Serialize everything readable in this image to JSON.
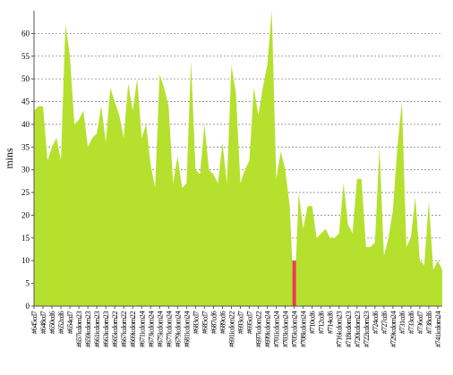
{
  "chart_data": {
    "type": "area",
    "ylabel": "mins",
    "categories": [
      "#645cd7",
      null,
      "#648cd7",
      null,
      "#650cd6",
      null,
      "#652cd6",
      null,
      "#654cd7",
      null,
      "#657icdom23",
      null,
      "#659icdom23",
      null,
      "#661icdom23",
      null,
      "#663icdom23",
      null,
      "#665icdom22",
      null,
      "#667icdom22",
      null,
      "#669icdom22",
      null,
      "#671icdom24",
      null,
      "#673icdom24",
      null,
      "#675icdom24",
      null,
      "#677icdom24",
      null,
      "#679icdom24",
      null,
      "#681icdom24",
      null,
      "#683cd7",
      null,
      "#685cd7",
      null,
      "#687cd6",
      null,
      "#689cd6",
      null,
      "#691icdom22",
      null,
      "#693cd7",
      null,
      "#695cd7",
      null,
      "#697icdom22",
      null,
      "#699icdom24",
      null,
      "#701icdom24",
      null,
      "#703icdom24",
      null,
      "#705icdom24",
      null,
      "#708icdom24",
      null,
      "#710cd6",
      null,
      "#712cd6",
      null,
      "#714cd6",
      null,
      "#716icdom23",
      null,
      "#718icdom23",
      null,
      "#720icdom23",
      null,
      "#722icdom23",
      null,
      "#724cd6",
      null,
      "#727cd6",
      null,
      "#729icdom24",
      null,
      "#731cd6",
      null,
      "#733cd6",
      null,
      "#736cd7",
      null,
      "#738cd6",
      null,
      "#741icdom24",
      null
    ],
    "series": [
      {
        "color": "#b5e02e",
        "values": [
          43,
          44,
          44,
          32,
          35,
          37,
          32,
          62,
          55,
          40,
          41,
          43,
          35,
          37,
          38,
          44,
          36,
          48,
          45,
          42,
          37,
          49,
          43,
          50,
          37,
          40,
          31,
          26,
          51,
          48,
          44,
          27,
          33,
          26,
          27,
          54,
          30,
          29,
          40,
          30,
          29,
          27,
          36,
          27,
          53,
          47,
          27,
          30,
          32,
          48,
          42,
          48,
          53,
          65,
          28,
          34,
          30,
          22,
          0,
          25,
          17,
          22,
          22,
          15,
          16,
          17,
          15,
          15,
          16,
          27,
          18,
          16,
          28,
          28,
          13,
          13,
          14,
          35,
          11,
          15,
          21,
          35,
          45,
          13,
          15,
          24,
          10,
          9,
          23,
          8,
          10,
          8
        ]
      },
      {
        "color": "#ef3b4f",
        "values": [
          null,
          null,
          null,
          null,
          null,
          null,
          null,
          null,
          null,
          null,
          null,
          null,
          null,
          null,
          null,
          null,
          null,
          null,
          null,
          null,
          null,
          null,
          null,
          null,
          null,
          null,
          null,
          null,
          null,
          null,
          null,
          null,
          null,
          null,
          null,
          null,
          null,
          null,
          null,
          null,
          null,
          null,
          null,
          null,
          null,
          null,
          null,
          null,
          null,
          null,
          null,
          null,
          null,
          null,
          null,
          null,
          null,
          null,
          10,
          null,
          null,
          null,
          null,
          null,
          null,
          null,
          null,
          null,
          null,
          null,
          null,
          null,
          null,
          null,
          null,
          null,
          null,
          null,
          null,
          null,
          null,
          null,
          null,
          null,
          null,
          null,
          null,
          null,
          null,
          null,
          null,
          null
        ]
      }
    ],
    "ylim": [
      0,
      65
    ],
    "yticks": [
      0,
      5,
      10,
      15,
      20,
      25,
      30,
      35,
      40,
      45,
      50,
      55,
      60
    ],
    "grid": true
  }
}
